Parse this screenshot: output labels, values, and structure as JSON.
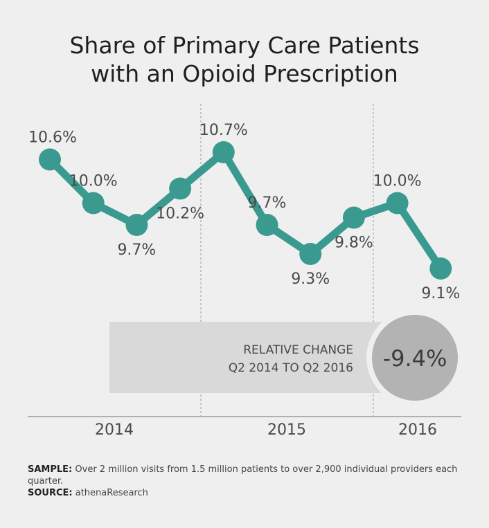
{
  "chart_data": {
    "type": "line",
    "title_lines": [
      "Share of Primary Care Patients",
      "with an Opioid Prescription"
    ],
    "values": [
      10.6,
      10.0,
      9.7,
      10.2,
      10.7,
      9.7,
      9.3,
      9.8,
      10.0,
      9.1
    ],
    "labels": [
      "10.6%",
      "10.0%",
      "9.7%",
      "10.2%",
      "10.7%",
      "9.7%",
      "9.3%",
      "9.8%",
      "10.0%",
      "9.1%"
    ],
    "label_position": [
      "above",
      "above",
      "below",
      "below",
      "above",
      "above",
      "below",
      "below",
      "above",
      "below"
    ],
    "x_groups": [
      "2014",
      "2014",
      "2014",
      "2014",
      "2015",
      "2015",
      "2015",
      "2015",
      "2016",
      "2016"
    ],
    "year_ticks": [
      "2014",
      "2015",
      "2016"
    ],
    "ylim": [
      9.0,
      10.8
    ],
    "colors": {
      "line": "#3a9a8f",
      "callout_box": "#d9d9d9",
      "callout_circle": "#b3b3b3"
    },
    "callout": {
      "line1": "RELATIVE CHANGE",
      "line2": "Q2 2014 TO Q2 2016",
      "value": "-9.4%"
    }
  },
  "footer": {
    "sample_label": "SAMPLE:",
    "sample_text": " Over 2 million visits from 1.5 million patients to over 2,900 individual providers each quarter.",
    "source_label": "SOURCE:",
    "source_text": " athenaResearch"
  }
}
